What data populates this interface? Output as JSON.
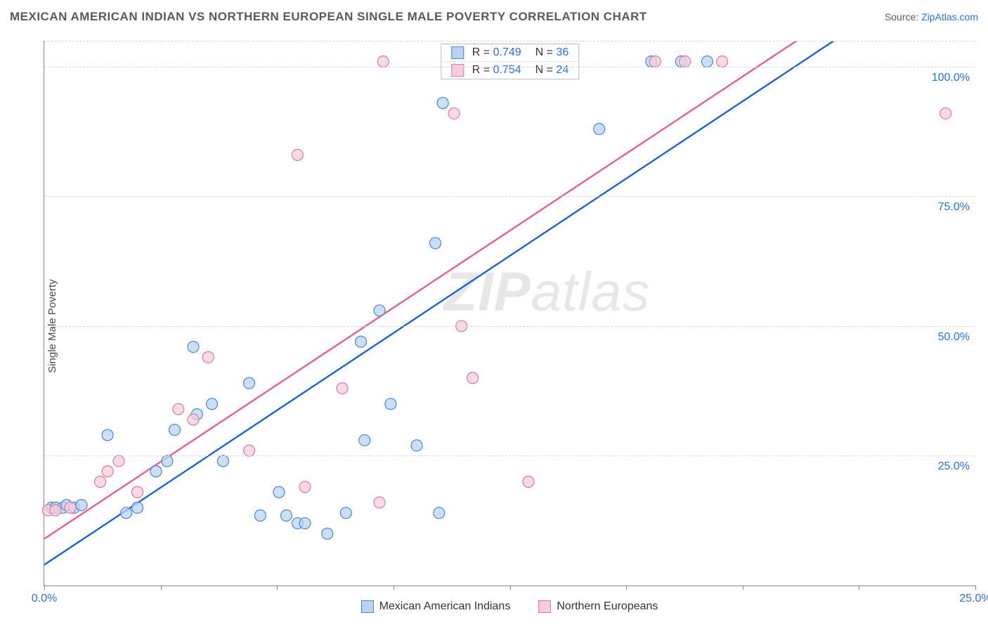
{
  "title": "MEXICAN AMERICAN INDIAN VS NORTHERN EUROPEAN SINGLE MALE POVERTY CORRELATION CHART",
  "source_prefix": "Source: ",
  "source_name": "ZipAtlas.com",
  "y_axis_label": "Single Male Poverty",
  "watermark_a": "ZIP",
  "watermark_b": "atlas",
  "chart": {
    "type": "scatter",
    "xlim": [
      0,
      25
    ],
    "ylim": [
      0,
      105
    ],
    "x_ticks": [
      0,
      3.125,
      6.25,
      9.375,
      12.5,
      15.625,
      18.75,
      21.875,
      25
    ],
    "x_tick_labels": {
      "0": "0.0%",
      "25": "25.0%"
    },
    "y_gridlines": [
      25,
      50,
      75,
      100,
      105
    ],
    "y_tick_labels": {
      "25": "25.0%",
      "50": "50.0%",
      "75": "75.0%",
      "100": "100.0%"
    },
    "background_color": "#ffffff",
    "grid_color": "#d7d7d7",
    "axis_color": "#888888",
    "marker_radius": 8,
    "marker_stroke_width": 1.2,
    "line_width": 2.4,
    "series": [
      {
        "name": "Mexican American Indians",
        "fill": "#b9d4f3",
        "stroke": "#4a88d6",
        "line_color": "#1f62d6",
        "R_label": "R = ",
        "R_value": "0.749",
        "N_label": "N = ",
        "N_value": "36",
        "trend": {
          "x1": 0,
          "y1": 4,
          "x2": 21.2,
          "y2": 105
        },
        "points": [
          [
            0.2,
            15
          ],
          [
            0.3,
            15
          ],
          [
            0.5,
            15
          ],
          [
            0.6,
            15.5
          ],
          [
            0.8,
            15
          ],
          [
            1.0,
            15.5
          ],
          [
            1.7,
            29
          ],
          [
            2.2,
            14
          ],
          [
            2.5,
            15
          ],
          [
            3.0,
            22
          ],
          [
            3.3,
            24
          ],
          [
            3.5,
            30
          ],
          [
            4.0,
            46
          ],
          [
            4.1,
            33
          ],
          [
            4.5,
            35
          ],
          [
            4.8,
            24
          ],
          [
            5.5,
            39
          ],
          [
            5.8,
            13.5
          ],
          [
            6.3,
            18
          ],
          [
            6.5,
            13.5
          ],
          [
            6.8,
            12
          ],
          [
            7.0,
            12
          ],
          [
            7.6,
            10
          ],
          [
            8.1,
            14
          ],
          [
            8.5,
            47
          ],
          [
            8.6,
            28
          ],
          [
            9.0,
            53
          ],
          [
            9.3,
            35
          ],
          [
            10.0,
            27
          ],
          [
            10.5,
            66
          ],
          [
            10.6,
            14
          ],
          [
            10.7,
            93
          ],
          [
            14.9,
            88
          ],
          [
            16.3,
            101
          ],
          [
            17.1,
            101
          ],
          [
            17.8,
            101
          ]
        ]
      },
      {
        "name": "Northern Europeans",
        "fill": "#f6cdd8",
        "stroke": "#e079a0",
        "line_color": "#e75f8e",
        "R_label": "R = ",
        "R_value": "0.754",
        "N_label": "N = ",
        "N_value": "24",
        "trend": {
          "x1": 0,
          "y1": 9,
          "x2": 20.2,
          "y2": 105
        },
        "points": [
          [
            0.1,
            14.5
          ],
          [
            0.3,
            14.5
          ],
          [
            0.7,
            15
          ],
          [
            1.5,
            20
          ],
          [
            1.7,
            22
          ],
          [
            2.0,
            24
          ],
          [
            2.5,
            18
          ],
          [
            3.6,
            34
          ],
          [
            4.0,
            32
          ],
          [
            4.4,
            44
          ],
          [
            5.5,
            26
          ],
          [
            6.8,
            83
          ],
          [
            7.0,
            19
          ],
          [
            8.0,
            38
          ],
          [
            9.0,
            16
          ],
          [
            9.1,
            101
          ],
          [
            11.0,
            91
          ],
          [
            11.2,
            50
          ],
          [
            11.5,
            40
          ],
          [
            13.0,
            20
          ],
          [
            16.4,
            101
          ],
          [
            17.2,
            101
          ],
          [
            18.2,
            101
          ],
          [
            24.2,
            91
          ]
        ]
      }
    ]
  },
  "bottom_legend": [
    {
      "swatch_fill": "#b9d4f3",
      "swatch_stroke": "#4a88d6",
      "label": "Mexican American Indians"
    },
    {
      "swatch_fill": "#f6cdd8",
      "swatch_stroke": "#e079a0",
      "label": "Northern Europeans"
    }
  ]
}
